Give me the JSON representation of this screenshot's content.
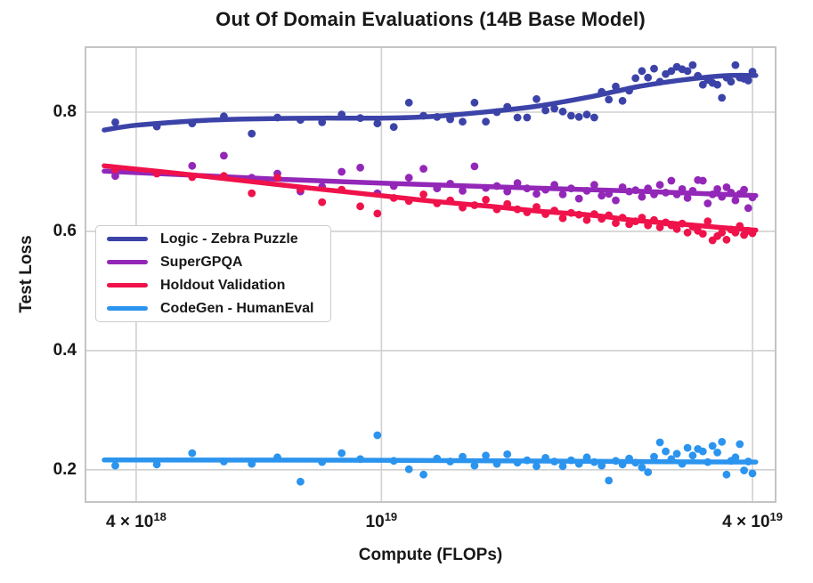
{
  "chart_data": {
    "type": "scatter",
    "title": "Out Of Domain Evaluations (14B Base Model)",
    "xlabel": "Compute (FLOPs)",
    "ylabel": "Test Loss",
    "x_scale": "log",
    "x_unit_flops": 1e+18,
    "x_range": [
      3.31,
      43.6
    ],
    "y_range": [
      0.146,
      0.909
    ],
    "grid": "on",
    "legend_position": "center-left",
    "x_ticks": [
      {
        "v": 4,
        "label": "4 × 10^18",
        "base": "4 × 10",
        "exp": "18"
      },
      {
        "v": 10,
        "label": "10^19",
        "base": "10",
        "exp": "19"
      },
      {
        "v": 40,
        "label": "4 × 10^19",
        "base": "4 × 10",
        "exp": "19"
      }
    ],
    "y_ticks": [
      {
        "v": 0.8,
        "label": "0.8"
      },
      {
        "v": 0.6,
        "label": "0.6"
      },
      {
        "v": 0.4,
        "label": "0.4"
      },
      {
        "v": 0.2,
        "label": "0.2"
      }
    ],
    "x": [
      3.7,
      4.32,
      4.93,
      5.55,
      6.16,
      6.78,
      7.39,
      8.01,
      8.62,
      9.24,
      9.85,
      10.47,
      11.08,
      11.7,
      12.31,
      12.93,
      13.54,
      14.16,
      14.77,
      15.39,
      16.0,
      16.62,
      17.23,
      17.85,
      18.46,
      19.08,
      19.69,
      20.31,
      20.92,
      21.54,
      22.15,
      22.77,
      23.38,
      24.0,
      24.61,
      25.23,
      25.84,
      26.46,
      27.07,
      27.69,
      28.3,
      28.92,
      29.53,
      30.15,
      30.76,
      31.38,
      31.99,
      32.61,
      33.22,
      33.84,
      34.45,
      35.07,
      35.68,
      36.3,
      36.91,
      37.53,
      38.14,
      38.76,
      39.37,
      39.99
    ],
    "series": [
      {
        "name": "Logic - Zebra Puzzle",
        "color": "#3c43a8",
        "y": [
          0.783,
          0.776,
          0.781,
          0.793,
          0.764,
          0.791,
          0.787,
          0.783,
          0.796,
          0.79,
          0.781,
          0.775,
          0.816,
          0.794,
          0.792,
          0.788,
          0.784,
          0.816,
          0.784,
          0.8,
          0.809,
          0.791,
          0.791,
          0.822,
          0.803,
          0.806,
          0.801,
          0.794,
          0.792,
          0.796,
          0.791,
          0.834,
          0.821,
          0.843,
          0.819,
          0.836,
          0.857,
          0.869,
          0.858,
          0.873,
          0.851,
          0.864,
          0.869,
          0.876,
          0.872,
          0.869,
          0.879,
          0.861,
          0.846,
          0.854,
          0.849,
          0.846,
          0.824,
          0.858,
          0.851,
          0.879,
          0.858,
          0.856,
          0.853,
          0.868
        ],
        "trend": [
          [
            3.55,
            0.77
          ],
          [
            4,
            0.778
          ],
          [
            5,
            0.7855
          ],
          [
            6,
            0.7885
          ],
          [
            7,
            0.7895
          ],
          [
            8,
            0.79
          ],
          [
            10,
            0.79
          ],
          [
            12,
            0.7925
          ],
          [
            15,
            0.801
          ],
          [
            18,
            0.8105
          ],
          [
            22,
            0.8265
          ],
          [
            26,
            0.8425
          ],
          [
            30,
            0.8525
          ],
          [
            34,
            0.859
          ],
          [
            37,
            0.8615
          ],
          [
            40.5,
            0.8615
          ]
        ]
      },
      {
        "name": "SuperGPQA",
        "color": "#9327b8",
        "y": [
          0.693,
          0.698,
          0.71,
          0.727,
          0.69,
          0.697,
          0.667,
          0.675,
          0.7,
          0.707,
          0.664,
          0.676,
          0.69,
          0.705,
          0.672,
          0.68,
          0.668,
          0.709,
          0.673,
          0.676,
          0.667,
          0.681,
          0.672,
          0.663,
          0.67,
          0.678,
          0.662,
          0.672,
          0.655,
          0.668,
          0.678,
          0.66,
          0.663,
          0.652,
          0.674,
          0.667,
          0.669,
          0.658,
          0.672,
          0.662,
          0.678,
          0.665,
          0.685,
          0.662,
          0.671,
          0.656,
          0.668,
          0.686,
          0.685,
          0.647,
          0.662,
          0.671,
          0.658,
          0.674,
          0.665,
          0.652,
          0.663,
          0.67,
          0.639,
          0.657
        ],
        "trend": [
          [
            3.55,
            0.701
          ],
          [
            5,
            0.694
          ],
          [
            7,
            0.687
          ],
          [
            10,
            0.681
          ],
          [
            15,
            0.675
          ],
          [
            20,
            0.671
          ],
          [
            25,
            0.668
          ],
          [
            30,
            0.665
          ],
          [
            35,
            0.6625
          ],
          [
            40.5,
            0.66
          ]
        ]
      },
      {
        "name": "Holdout Validation",
        "color": "#ef124b",
        "y": [
          0.704,
          0.697,
          0.691,
          0.693,
          0.664,
          0.69,
          0.671,
          0.649,
          0.67,
          0.642,
          0.63,
          0.656,
          0.651,
          0.662,
          0.647,
          0.652,
          0.64,
          0.644,
          0.653,
          0.637,
          0.646,
          0.637,
          0.632,
          0.641,
          0.629,
          0.635,
          0.622,
          0.631,
          0.628,
          0.619,
          0.629,
          0.621,
          0.627,
          0.614,
          0.623,
          0.612,
          0.617,
          0.623,
          0.61,
          0.619,
          0.607,
          0.615,
          0.61,
          0.604,
          0.613,
          0.598,
          0.608,
          0.601,
          0.596,
          0.617,
          0.585,
          0.592,
          0.598,
          0.586,
          0.603,
          0.598,
          0.609,
          0.594,
          0.601,
          0.597
        ],
        "trend": [
          [
            3.55,
            0.71
          ],
          [
            5,
            0.694
          ],
          [
            7,
            0.677
          ],
          [
            10,
            0.66
          ],
          [
            12,
            0.651
          ],
          [
            15,
            0.642
          ],
          [
            18,
            0.634
          ],
          [
            22,
            0.627
          ],
          [
            26,
            0.618
          ],
          [
            30,
            0.613
          ],
          [
            35,
            0.607
          ],
          [
            40.5,
            0.602
          ]
        ]
      },
      {
        "name": "CodeGen - HumanEval",
        "color": "#2b94ee",
        "y": [
          0.207,
          0.209,
          0.228,
          0.214,
          0.21,
          0.221,
          0.18,
          0.213,
          0.228,
          0.218,
          0.258,
          0.215,
          0.201,
          0.192,
          0.219,
          0.214,
          0.222,
          0.207,
          0.224,
          0.21,
          0.226,
          0.212,
          0.216,
          0.206,
          0.22,
          0.214,
          0.206,
          0.216,
          0.21,
          0.221,
          0.213,
          0.207,
          0.182,
          0.215,
          0.209,
          0.219,
          0.212,
          0.204,
          0.196,
          0.222,
          0.246,
          0.231,
          0.218,
          0.227,
          0.21,
          0.237,
          0.224,
          0.235,
          0.231,
          0.213,
          0.24,
          0.229,
          0.247,
          0.192,
          0.215,
          0.221,
          0.243,
          0.199,
          0.214,
          0.194
        ],
        "trend": [
          [
            3.55,
            0.2165
          ],
          [
            10,
            0.216
          ],
          [
            20,
            0.2145
          ],
          [
            30,
            0.2135
          ],
          [
            40.5,
            0.213
          ]
        ]
      }
    ],
    "style": {
      "grid_color": "#d0d0d0",
      "spine_color": "#c4c4c4",
      "text_color": "#181818",
      "background": "#ffffff"
    }
  }
}
